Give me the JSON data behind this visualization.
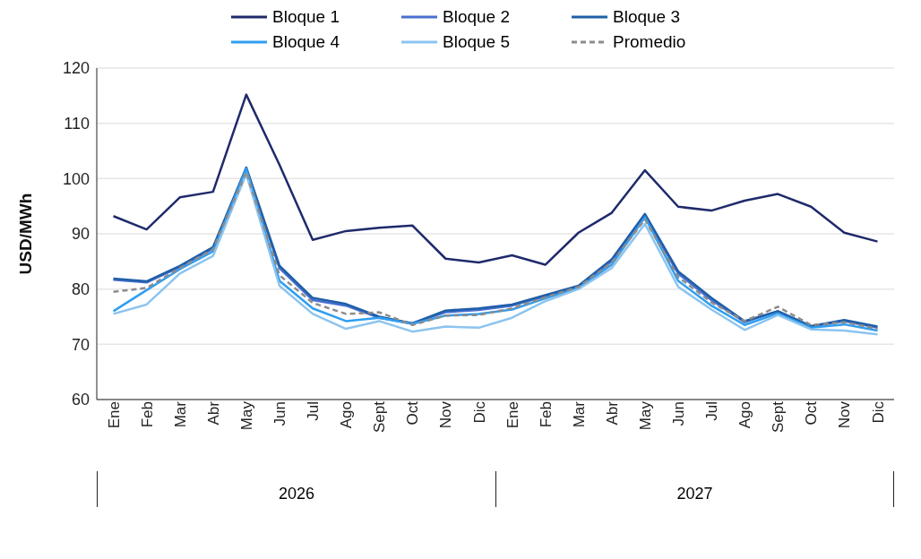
{
  "chart_data": {
    "type": "line",
    "ylabel": "USD/MWh",
    "categories": [
      "Ene",
      "Feb",
      "Mar",
      "Abr",
      "May",
      "Jun",
      "Jul",
      "Ago",
      "Sept",
      "Oct",
      "Nov",
      "Dic",
      "Ene",
      "Feb",
      "Mar",
      "Abr",
      "May",
      "Jun",
      "Jul",
      "Ago",
      "Sept",
      "Oct",
      "Nov",
      "Dic"
    ],
    "annotations": [
      "2026",
      "2027"
    ],
    "ylim": [
      60,
      120
    ],
    "yticks": [
      60,
      70,
      80,
      90,
      100,
      110,
      120
    ],
    "grid": "y",
    "legend": "top",
    "marker": "none",
    "series": [
      {
        "name": "Bloque 1",
        "color": "#1f2a6b",
        "values": [
          93.2,
          90.8,
          96.6,
          97.6,
          115.2,
          102.5,
          88.9,
          90.5,
          91.1,
          91.5,
          85.5,
          84.8,
          86.1,
          84.4,
          90.2,
          93.8,
          101.5,
          94.9,
          94.2,
          96.0,
          97.2,
          94.9,
          90.2,
          88.6
        ]
      },
      {
        "name": "Bloque 2",
        "color": "#4a6fd0",
        "values": [
          81.7,
          81.2,
          84.0,
          87.3,
          101.8,
          83.8,
          78.0,
          77.0,
          74.8,
          73.8,
          75.8,
          76.2,
          77.0,
          78.7,
          80.4,
          85.0,
          93.3,
          82.8,
          78.0,
          74.0,
          76.0,
          73.2,
          74.2,
          73.0
        ]
      },
      {
        "name": "Bloque 3",
        "color": "#1f5fa8",
        "values": [
          81.9,
          81.4,
          84.2,
          87.6,
          102.0,
          84.2,
          78.4,
          77.3,
          75.0,
          73.8,
          76.1,
          76.5,
          77.2,
          78.9,
          80.6,
          85.4,
          93.6,
          83.2,
          78.4,
          74.2,
          76.0,
          73.3,
          74.4,
          73.2
        ]
      },
      {
        "name": "Bloque 4",
        "color": "#2e9ef0",
        "values": [
          76.0,
          79.8,
          83.6,
          86.8,
          101.8,
          81.5,
          76.5,
          74.2,
          74.8,
          73.7,
          75.2,
          75.5,
          76.3,
          78.3,
          80.2,
          84.4,
          93.0,
          81.5,
          77.0,
          73.5,
          75.6,
          73.0,
          73.6,
          72.5
        ]
      },
      {
        "name": "Bloque 5",
        "color": "#8cc4ef",
        "values": [
          75.5,
          77.2,
          82.8,
          86.0,
          100.8,
          80.6,
          75.5,
          72.8,
          74.2,
          72.3,
          73.2,
          73.0,
          74.8,
          77.8,
          80.0,
          83.8,
          91.8,
          80.4,
          76.3,
          72.6,
          75.3,
          72.7,
          72.5,
          71.8
        ]
      },
      {
        "name": "Promedio",
        "color": "#8c8c8c",
        "line_style": "dashed",
        "values": [
          79.5,
          80.2,
          83.8,
          87.2,
          101.2,
          82.5,
          77.5,
          75.5,
          75.8,
          73.5,
          75.2,
          75.3,
          76.5,
          78.5,
          80.4,
          84.8,
          92.6,
          82.2,
          77.6,
          74.2,
          76.8,
          73.5,
          74.0,
          72.8
        ]
      }
    ]
  }
}
